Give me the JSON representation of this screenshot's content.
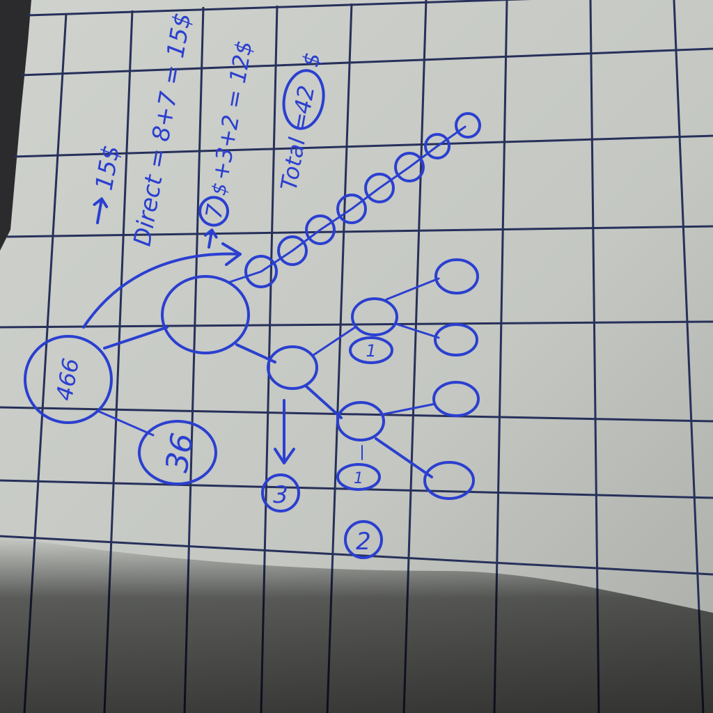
{
  "photo": {
    "description": "Photo of grid paper with hand-drawn blue-ink diagram",
    "colors": {
      "paper": "#c8cbc6",
      "grid": "#27305a",
      "ink": "#2a3fd0",
      "shadow": "#3a3a3a",
      "binder": "#2b2b2e"
    }
  },
  "notes": {
    "arrow_top_value": "15$",
    "direct_line": "Direct = 8+7 = 15$",
    "seven_prefix": "7",
    "seven_suffix": "$",
    "sum_line": "+3+2 = 12$",
    "total_label": "Total =",
    "total_value": "42",
    "total_unit": "$"
  },
  "diagram": {
    "root_label": "466",
    "node_36_label": "36",
    "node_1_label": "1",
    "node_1b_label": "1",
    "marker_3_label": "3",
    "marker_2_label": "2"
  }
}
